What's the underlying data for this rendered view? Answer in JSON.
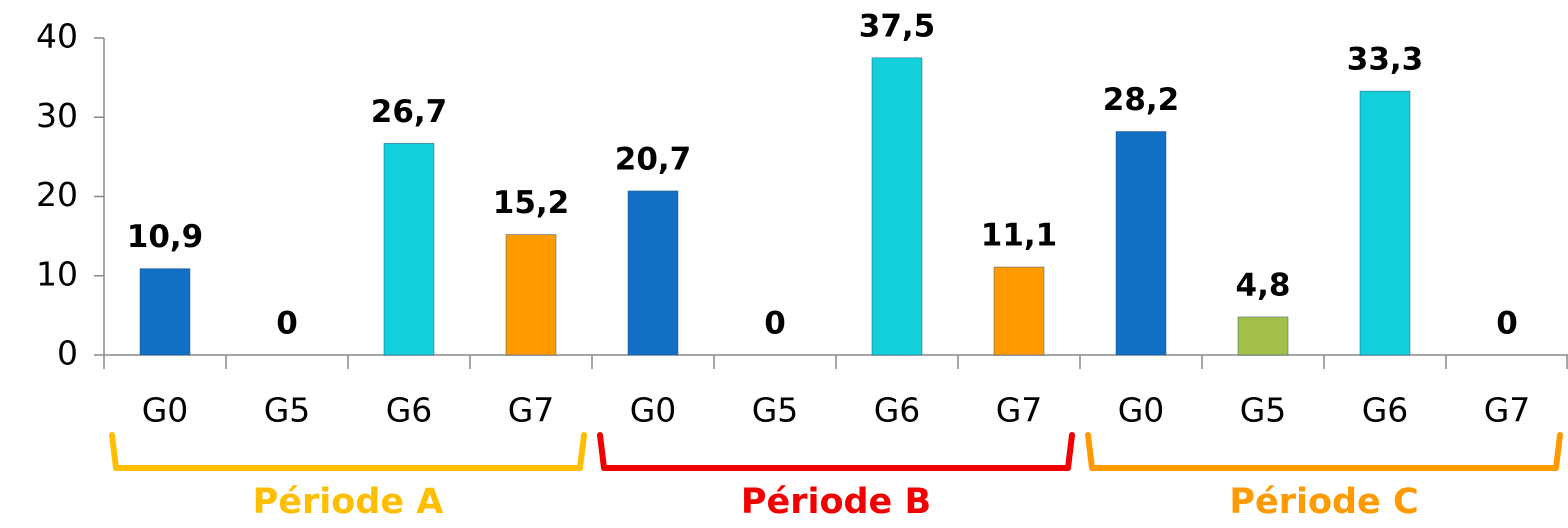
{
  "chart_data": {
    "type": "bar",
    "categories": [
      "G0",
      "G5",
      "G6",
      "G7",
      "G0",
      "G5",
      "G6",
      "G7",
      "G0",
      "G5",
      "G6",
      "G7"
    ],
    "values": [
      10.9,
      0,
      26.7,
      15.2,
      20.7,
      0,
      37.5,
      11.1,
      28.2,
      4.8,
      33.3,
      0
    ],
    "value_labels": [
      "10,9",
      "0",
      "26,7",
      "15,2",
      "20,7",
      "0",
      "37,5",
      "11,1",
      "28,2",
      "4,8",
      "33,3",
      "0"
    ],
    "colors": [
      "#1170c4",
      "#a4c04a",
      "#12cfd9",
      "#ff9a00",
      "#1170c4",
      "#a4c04a",
      "#12cfd9",
      "#ff9a00",
      "#1170c4",
      "#a4c04a",
      "#12cfd9",
      "#ff9a00"
    ],
    "ylim": [
      0,
      40
    ],
    "yticks": [
      0,
      10,
      20,
      30,
      40
    ],
    "groups": [
      {
        "label": "Période A",
        "color": "#ffbf00"
      },
      {
        "label": "Période B",
        "color": "#f20000"
      },
      {
        "label": "Période C",
        "color": "#ff9a00"
      }
    ]
  }
}
